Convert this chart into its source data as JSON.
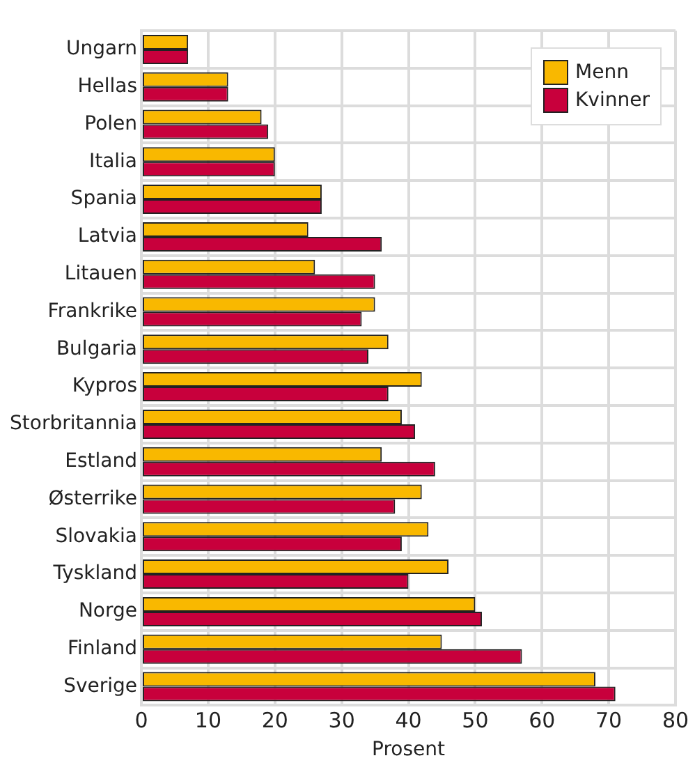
{
  "chart_data": {
    "type": "bar",
    "orientation": "horizontal",
    "xlabel": "Prosent",
    "categories": [
      "Ungarn",
      "Hellas",
      "Polen",
      "Italia",
      "Spania",
      "Latvia",
      "Litauen",
      "Frankrike",
      "Bulgaria",
      "Kypros",
      "Storbritannia",
      "Estland",
      "Østerrike",
      "Slovakia",
      "Tyskland",
      "Norge",
      "Finland",
      "Sverige"
    ],
    "series": [
      {
        "name": "Menn",
        "color": "#f9b800",
        "values": [
          7,
          13,
          18,
          20,
          27,
          25,
          26,
          35,
          37,
          42,
          39,
          36,
          42,
          43,
          46,
          50,
          45,
          68
        ]
      },
      {
        "name": "Kvinner",
        "color": "#c8003c",
        "values": [
          7,
          13,
          19,
          20,
          27,
          36,
          35,
          33,
          34,
          37,
          41,
          44,
          38,
          39,
          40,
          51,
          57,
          71
        ]
      }
    ],
    "xlim": [
      0,
      80
    ],
    "xticks": [
      0,
      10,
      20,
      30,
      40,
      50,
      60,
      70,
      80
    ],
    "grid": true,
    "legend": "top right"
  }
}
